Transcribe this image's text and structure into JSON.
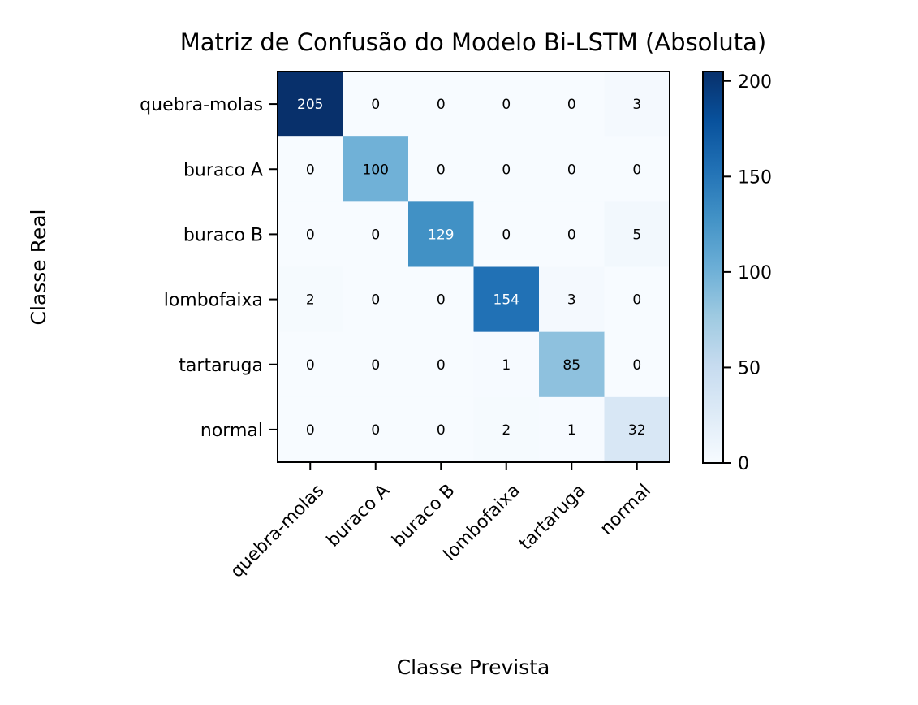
{
  "chart_data": {
    "type": "heatmap",
    "title": "Matriz de Confusão do Modelo Bi-LSTM (Absoluta)",
    "xlabel": "Classe Prevista",
    "ylabel": "Classe Real",
    "row_labels": [
      "quebra-molas",
      "buraco A",
      "buraco B",
      "lombofaixa",
      "tartaruga",
      "normal"
    ],
    "col_labels": [
      "quebra-molas",
      "buraco A",
      "buraco B",
      "lombofaixa",
      "tartaruga",
      "normal"
    ],
    "values": [
      [
        205,
        0,
        0,
        0,
        0,
        3
      ],
      [
        0,
        100,
        0,
        0,
        0,
        0
      ],
      [
        0,
        0,
        129,
        0,
        0,
        5
      ],
      [
        2,
        0,
        0,
        154,
        3,
        0
      ],
      [
        0,
        0,
        0,
        1,
        85,
        0
      ],
      [
        0,
        0,
        0,
        2,
        1,
        32
      ]
    ],
    "colormap": "Blues",
    "color_range": [
      0,
      205
    ],
    "colorbar_ticks": [
      0,
      50,
      100,
      150,
      200
    ]
  }
}
